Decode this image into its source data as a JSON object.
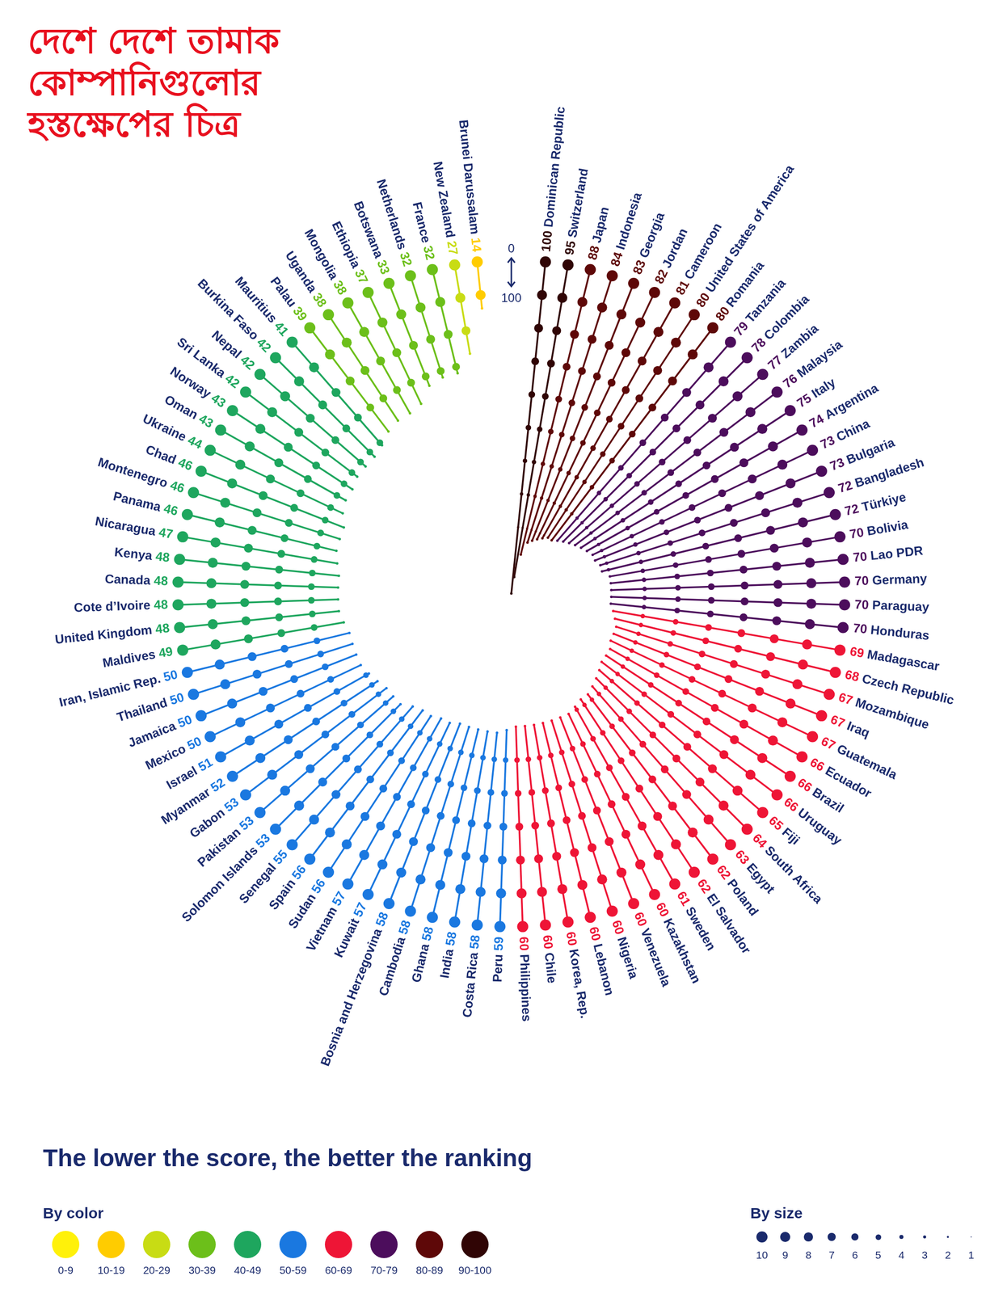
{
  "chart_data": {
    "type": "radar",
    "title": [
      "দেশে দেশে তামাক",
      "কোম্পানিগুলোর",
      "হস্তক্ষেপের চিত্র"
    ],
    "subtitle": "The lower the score, the better the ranking",
    "categories": [
      "Dominican Republic",
      "Switzerland",
      "Japan",
      "Indonesia",
      "Georgia",
      "Jordan",
      "Cameroon",
      "United States of America",
      "Romania",
      "Tanzania",
      "Colombia",
      "Zambia",
      "Malaysia",
      "Italy",
      "Argentina",
      "China",
      "Bulgaria",
      "Bangladesh",
      "Türkiye",
      "Bolivia",
      "Lao PDR",
      "Germany",
      "Paraguay",
      "Honduras",
      "Madagascar",
      "Czech Republic",
      "Mozambique",
      "Iraq",
      "Guatemala",
      "Ecuador",
      "Brazil",
      "Uruguay",
      "Fiji",
      "South Africa",
      "Egypt",
      "Poland",
      "El Salvador",
      "Sweden",
      "Kazakhstan",
      "Venezuela",
      "Nigeria",
      "Lebanon",
      "Korea, Rep.",
      "Chile",
      "Philippines",
      "Peru",
      "Costa Rica",
      "India",
      "Ghana",
      "Cambodia",
      "Bosnia and Herzegovina",
      "Kuwait",
      "Vietnam",
      "Sudan",
      "Spain",
      "Senegal",
      "Solomon Islands",
      "Pakistan",
      "Gabon",
      "Myanmar",
      "Israel",
      "Mexico",
      "Jamaica",
      "Thailand",
      "Iran, Islamic Rep.",
      "Maldives",
      "United Kingdom",
      "Cote d’Ivoire",
      "Canada",
      "Kenya",
      "Nicaragua",
      "Panama",
      "Montenegro",
      "Chad",
      "Ukraine",
      "Oman",
      "Norway",
      "Sri Lanka",
      "Nepal",
      "Burkina Faso",
      "Mauritius",
      "Palau",
      "Uganda",
      "Mongolia",
      "Ethiopia",
      "Botswana",
      "Netherlands",
      "France",
      "New Zealand",
      "Brunei Darussalam"
    ],
    "values": [
      100,
      95,
      88,
      84,
      83,
      82,
      81,
      80,
      80,
      79,
      78,
      77,
      76,
      75,
      74,
      73,
      73,
      72,
      72,
      70,
      70,
      70,
      70,
      70,
      69,
      68,
      67,
      67,
      67,
      66,
      66,
      66,
      65,
      64,
      63,
      62,
      62,
      61,
      60,
      60,
      60,
      60,
      60,
      60,
      60,
      59,
      58,
      58,
      58,
      58,
      58,
      57,
      57,
      56,
      56,
      55,
      53,
      53,
      53,
      52,
      51,
      50,
      50,
      50,
      50,
      49,
      48,
      48,
      48,
      48,
      47,
      46,
      46,
      46,
      44,
      43,
      43,
      42,
      42,
      42,
      41,
      39,
      38,
      38,
      37,
      33,
      32,
      32,
      27,
      14
    ],
    "ylim": [
      0,
      100
    ],
    "yticks": [
      0,
      100
    ],
    "grid": false,
    "data_labels": true,
    "legend": "bottom",
    "color_legend": {
      "title": "By color",
      "items": [
        {
          "label": "0-9",
          "range": [
            0,
            9
          ],
          "color": "#fff10a"
        },
        {
          "label": "10-19",
          "range": [
            10,
            19
          ],
          "color": "#ffcc00"
        },
        {
          "label": "20-29",
          "range": [
            20,
            29
          ],
          "color": "#c8dc14"
        },
        {
          "label": "30-39",
          "range": [
            30,
            39
          ],
          "color": "#6cbf1a"
        },
        {
          "label": "40-49",
          "range": [
            40,
            49
          ],
          "color": "#1ea65e"
        },
        {
          "label": "50-59",
          "range": [
            50,
            59
          ],
          "color": "#1a78e0"
        },
        {
          "label": "60-69",
          "range": [
            60,
            69
          ],
          "color": "#ee1536"
        },
        {
          "label": "70-79",
          "range": [
            70,
            79
          ],
          "color": "#4c0d5c"
        },
        {
          "label": "80-89",
          "range": [
            80,
            89
          ],
          "color": "#5e0808"
        },
        {
          "label": "90-100",
          "range": [
            90,
            100
          ],
          "color": "#300505"
        }
      ]
    },
    "size_legend": {
      "title": "By size",
      "sizes": [
        10,
        9,
        8,
        7,
        6,
        5,
        4,
        3,
        2,
        1
      ]
    }
  }
}
